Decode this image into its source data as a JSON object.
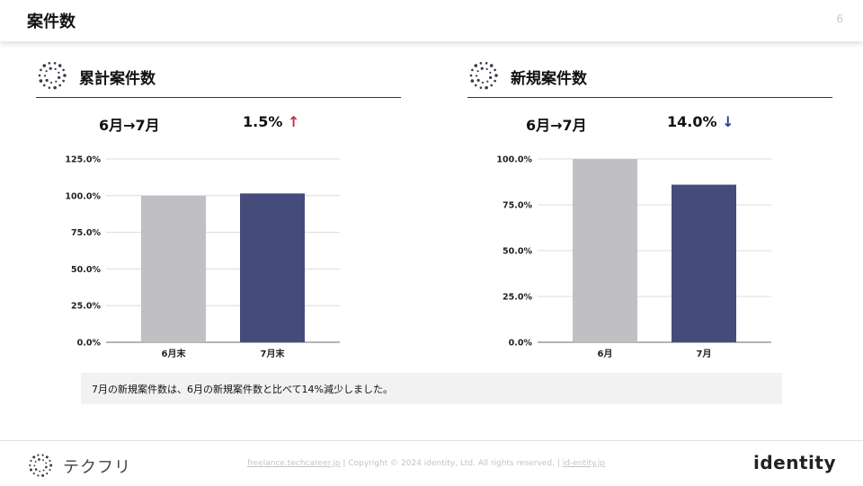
{
  "header": {
    "title": "案件数",
    "page_number": "6"
  },
  "sections": [
    {
      "title": "累計案件数",
      "period": "6月→7月",
      "change_value": "1.5%",
      "change_direction": "up",
      "arrow": "↑"
    },
    {
      "title": "新規案件数",
      "period": "6月→7月",
      "change_value": "14.0%",
      "change_direction": "down",
      "arrow": "↓"
    }
  ],
  "chart_data": [
    {
      "type": "bar",
      "categories": [
        "6月末",
        "7月末"
      ],
      "values": [
        100.0,
        101.5
      ],
      "ylim": [
        0,
        125
      ],
      "yticks": [
        0,
        25,
        50,
        75,
        100,
        125
      ],
      "ytick_labels": [
        "0.0%",
        "25.0%",
        "50.0%",
        "75.0%",
        "100.0%",
        "125.0%"
      ],
      "colors": [
        "#c0bfc4",
        "#454b7b"
      ],
      "grid": true
    },
    {
      "type": "bar",
      "categories": [
        "6月",
        "7月"
      ],
      "values": [
        100.0,
        86.0
      ],
      "ylim": [
        0,
        100
      ],
      "yticks": [
        0,
        25,
        50,
        75,
        100
      ],
      "ytick_labels": [
        "0.0%",
        "25.0%",
        "50.0%",
        "75.0%",
        "100.0%"
      ],
      "colors": [
        "#c0bfc4",
        "#454b7b"
      ],
      "grid": true
    }
  ],
  "note": {
    "text": "7月の新規案件数は、6月の新規案件数と比べて14%減少しました。"
  },
  "footer": {
    "logo_text": "テクフリ",
    "link1": "freelance.techcareer.jp",
    "separator": "|",
    "copyright": "Copyright © 2024 identity, Ltd. All rights reserved.",
    "link2": "id-entity.jp",
    "brand": "identity"
  },
  "colors": {
    "up_arrow": "#c0304a",
    "down_arrow": "#2b3a8e",
    "bar_prev": "#c0bfc4",
    "bar_curr": "#454b7b"
  },
  "icons": {
    "section_logo": "dotted-circle-logo-icon",
    "footer_logo": "dotted-circle-logo-icon"
  }
}
